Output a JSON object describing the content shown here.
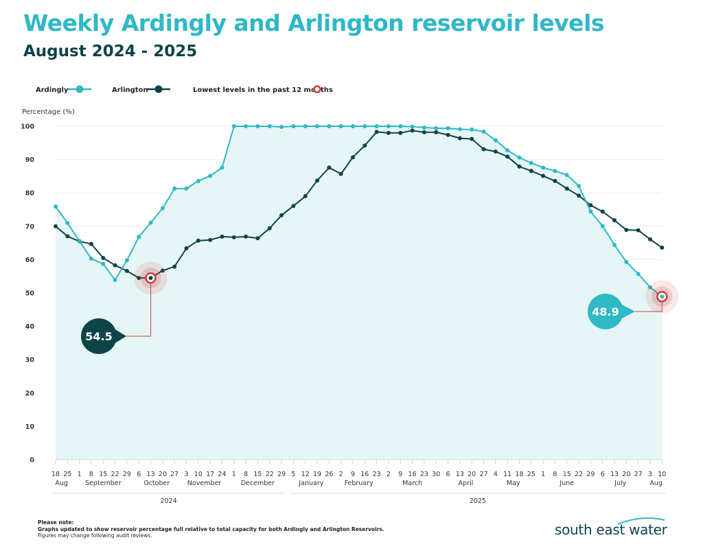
{
  "title": "Weekly Ardingly and Arlington reservoir levels",
  "subtitle": "August 2024 - 2025",
  "legend": {
    "ardingly": "Ardingly",
    "arlington": "Arlington",
    "lowest": "Lowest levels in the past 12 months"
  },
  "colors": {
    "ardingly": "#2fb8c6",
    "arlington": "#0d4448",
    "lowest": "#d23a3a",
    "area": "#e6f5f6",
    "grid": "#ebebeb"
  },
  "note": {
    "heading": "Please note:",
    "line1": "Graphs updated to show reservoir percentage full relative to total capacity for both Ardingly and Arlington Reservoirs.",
    "line2": "Figures may change following audit reviews."
  },
  "logo": {
    "text": "south east water"
  },
  "chart_data": {
    "type": "line",
    "ylabel": "Percentage (%)",
    "ylim": [
      0,
      100
    ],
    "yticks": [
      0,
      10,
      20,
      30,
      40,
      50,
      60,
      70,
      80,
      90,
      100
    ],
    "x": [
      "18",
      "25",
      "1",
      "8",
      "15",
      "22",
      "29",
      "6",
      "13",
      "20",
      "27",
      "3",
      "10",
      "17",
      "24",
      "1",
      "8",
      "15",
      "22",
      "29",
      "5",
      "12",
      "19",
      "26",
      "2",
      "9",
      "16",
      "23",
      "2",
      "9",
      "16",
      "23",
      "30",
      "6",
      "13",
      "20",
      "27",
      "4",
      "11",
      "18",
      "25",
      "1",
      "8",
      "15",
      "22",
      "29",
      "6",
      "13",
      "20",
      "27",
      "3",
      "10"
    ],
    "months": [
      {
        "label": "Aug",
        "start": 0,
        "end": 1
      },
      {
        "label": "September",
        "start": 2,
        "end": 6
      },
      {
        "label": "October",
        "start": 7,
        "end": 10
      },
      {
        "label": "November",
        "start": 11,
        "end": 14
      },
      {
        "label": "December",
        "start": 15,
        "end": 19
      },
      {
        "label": "January",
        "start": 20,
        "end": 23
      },
      {
        "label": "February",
        "start": 24,
        "end": 27
      },
      {
        "label": "March",
        "start": 28,
        "end": 32
      },
      {
        "label": "April",
        "start": 33,
        "end": 36
      },
      {
        "label": "May",
        "start": 37,
        "end": 40
      },
      {
        "label": "June",
        "start": 41,
        "end": 45
      },
      {
        "label": "July",
        "start": 46,
        "end": 49
      },
      {
        "label": "Aug",
        "start": 50,
        "end": 51
      }
    ],
    "years": [
      {
        "label": "2024",
        "start": 0,
        "end": 19
      },
      {
        "label": "2025",
        "start": 20,
        "end": 51
      }
    ],
    "series": [
      {
        "name": "Ardingly",
        "values": [
          75.9,
          71.0,
          65.6,
          60.3,
          58.7,
          53.9,
          59.8,
          66.8,
          71.1,
          75.4,
          81.3,
          81.3,
          83.6,
          85.1,
          87.6,
          100,
          100,
          100,
          100,
          99.8,
          100,
          100,
          100,
          100,
          100,
          100,
          100,
          100,
          100,
          100,
          99.9,
          99.6,
          99.4,
          99.4,
          99.1,
          99.0,
          98.4,
          95.8,
          92.8,
          90.6,
          89.0,
          87.6,
          86.6,
          85.4,
          82.1,
          74.4,
          70.1,
          64.4,
          59.3,
          55.7,
          51.7,
          48.9
        ]
      },
      {
        "name": "Arlington",
        "values": [
          70.0,
          67.0,
          65.5,
          64.7,
          60.5,
          58.3,
          56.6,
          54.5,
          54.5,
          56.7,
          57.9,
          63.4,
          65.7,
          65.9,
          66.9,
          66.7,
          66.9,
          66.4,
          69.4,
          73.3,
          76.1,
          79.0,
          83.7,
          87.6,
          85.7,
          90.7,
          94.2,
          98.3,
          98.0,
          98.0,
          98.7,
          98.2,
          98.2,
          97.4,
          96.4,
          96.2,
          93.1,
          92.4,
          90.9,
          87.9,
          86.6,
          85.1,
          83.6,
          81.3,
          79.2,
          76.3,
          74.4,
          71.8,
          68.9,
          68.8,
          66.1,
          63.6
        ]
      }
    ],
    "annotations": [
      {
        "series": "Arlington",
        "index": 8,
        "label": "54.5"
      },
      {
        "series": "Ardingly",
        "index": 51,
        "label": "48.9"
      }
    ]
  }
}
